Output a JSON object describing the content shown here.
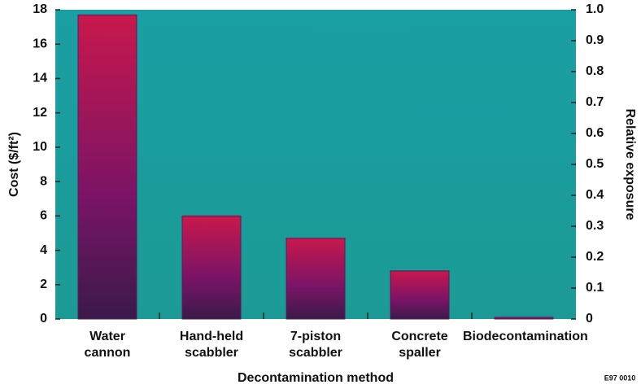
{
  "chart_data": {
    "type": "bar",
    "categories": [
      "Water cannon",
      "Hand-held scabbler",
      "7-piston scabbler",
      "Concrete spaller",
      "Biodecontamination"
    ],
    "values": [
      17.7,
      6.0,
      4.7,
      2.8,
      0.1
    ],
    "color": "#c8184c",
    "ylim": [
      0,
      18
    ],
    "yticks": [
      0,
      2,
      4,
      6,
      8,
      10,
      12,
      14,
      16,
      18
    ],
    "y2lim": [
      0,
      1
    ],
    "y2ticks": [
      0,
      0.1,
      0.2,
      0.3,
      0.4,
      0.5,
      0.6,
      0.7,
      0.8,
      0.9,
      {
        "value": 1,
        "label": "1.0"
      }
    ],
    "xlabel": "Decontamination method",
    "ylabel": "Cost ($/ft²)",
    "y2label": "Relative exposure",
    "note": "E97 0010"
  }
}
